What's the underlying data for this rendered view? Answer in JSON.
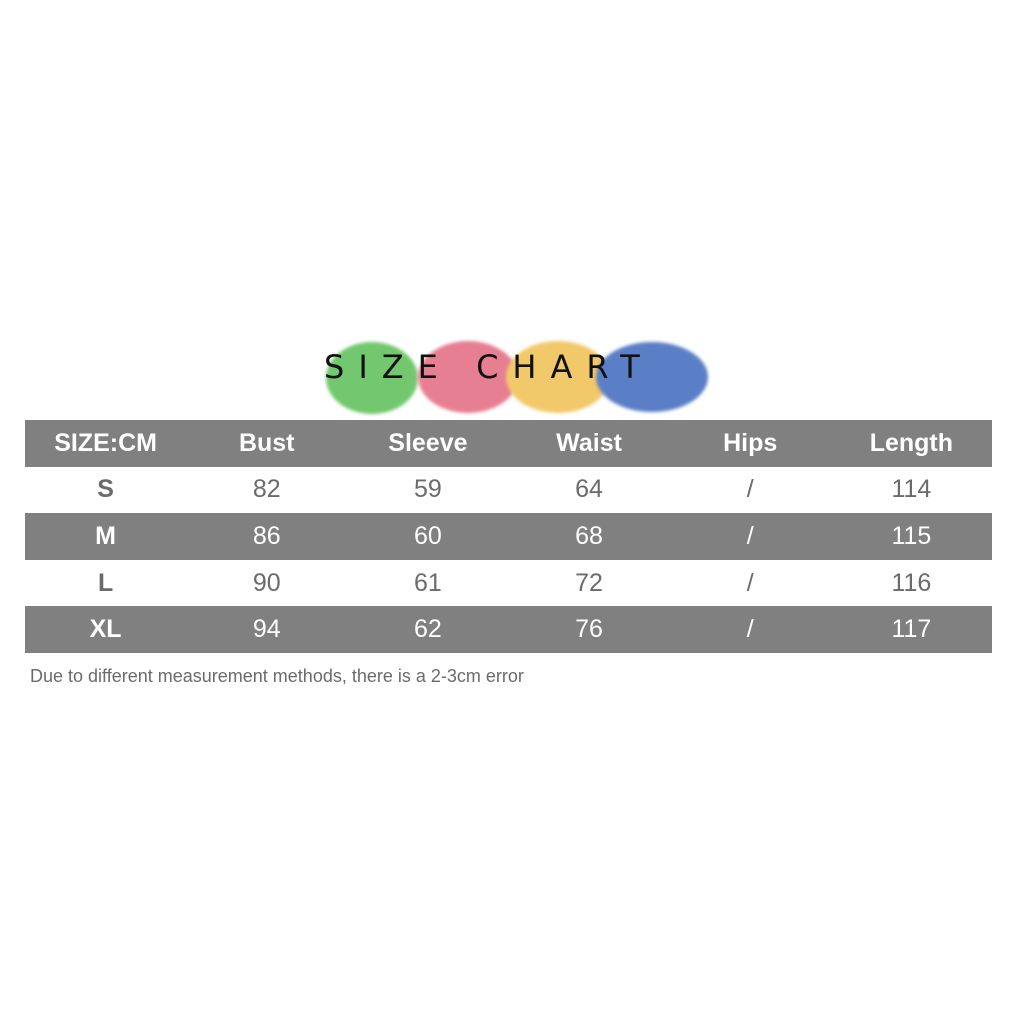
{
  "logo": {
    "text": "SIZE CHART",
    "colors": [
      "#73c86f",
      "#e77f93",
      "#f2c96a",
      "#5b7fc6"
    ]
  },
  "table": {
    "headers": [
      "SIZE:CM",
      "Bust",
      "Sleeve",
      "Waist",
      "Hips",
      "Length"
    ],
    "rows": [
      [
        "S",
        "82",
        "59",
        "64",
        "/",
        "114"
      ],
      [
        "M",
        "86",
        "60",
        "68",
        "/",
        "115"
      ],
      [
        "L",
        "90",
        "61",
        "72",
        "/",
        "116"
      ],
      [
        "XL",
        "94",
        "62",
        "76",
        "/",
        "117"
      ]
    ]
  },
  "note": "Due to different measurement methods, there is a 2-3cm error"
}
